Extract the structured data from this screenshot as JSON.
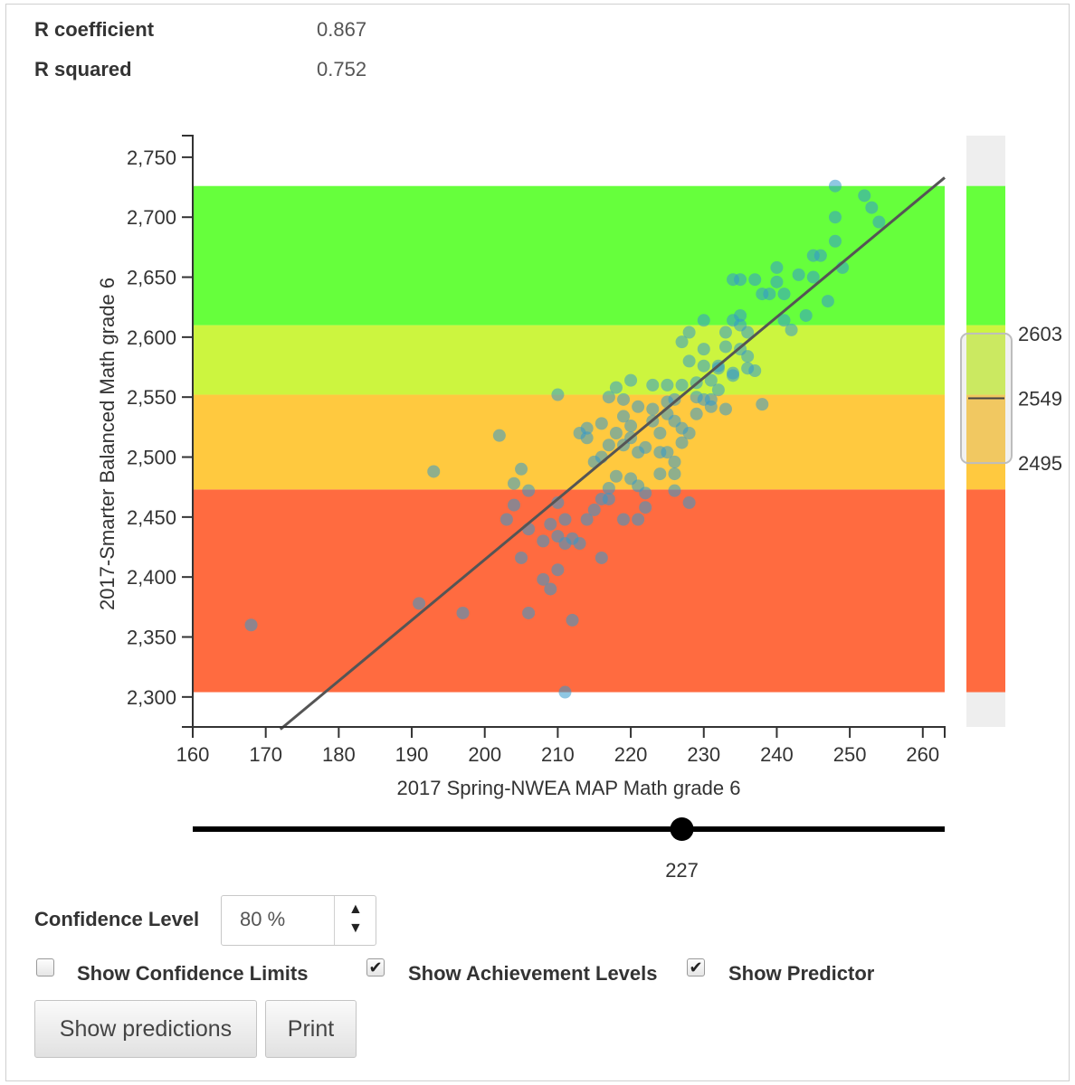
{
  "stats": {
    "r_label": "R coefficient",
    "r_value": "0.867",
    "r2_label": "R squared",
    "r2_value": "0.752"
  },
  "chart_data": {
    "type": "scatter",
    "xlabel": "2017 Spring-NWEA MAP Math grade 6",
    "ylabel": "2017-Smarter Balanced Math grade 6",
    "xlim": [
      160,
      263
    ],
    "ylim": [
      2275,
      2768
    ],
    "x_ticks": [
      160,
      170,
      180,
      190,
      200,
      210,
      220,
      230,
      240,
      250,
      260
    ],
    "x_tick_labels": [
      "160",
      "170",
      "180",
      "190",
      "200",
      "210",
      "220",
      "230",
      "240",
      "250",
      "260"
    ],
    "y_ticks": [
      2300,
      2350,
      2400,
      2450,
      2500,
      2550,
      2600,
      2650,
      2700,
      2750
    ],
    "y_tick_labels": [
      "2,300",
      "2,350",
      "2,400",
      "2,450",
      "2,500",
      "2,550",
      "2,600",
      "2,650",
      "2,700",
      "2,750"
    ],
    "grid": false,
    "achievement_levels": [
      {
        "from": 2304,
        "to": 2473,
        "color": "#ff6b40"
      },
      {
        "from": 2473,
        "to": 2552,
        "color": "#ffc93f"
      },
      {
        "from": 2552,
        "to": 2610,
        "color": "#ccf53f"
      },
      {
        "from": 2610,
        "to": 2726,
        "color": "#66ff3c"
      }
    ],
    "regression_line": {
      "x1": 172,
      "y1": 2273,
      "x2": 263,
      "y2": 2733,
      "color": "#555555"
    },
    "points_color": "#3399cc",
    "points": [
      [
        168,
        2360
      ],
      [
        191,
        2378
      ],
      [
        193,
        2488
      ],
      [
        197,
        2370
      ],
      [
        202,
        2518
      ],
      [
        203,
        2448
      ],
      [
        204,
        2478
      ],
      [
        204,
        2460
      ],
      [
        205,
        2490
      ],
      [
        205,
        2416
      ],
      [
        206,
        2472
      ],
      [
        206,
        2440
      ],
      [
        206,
        2370
      ],
      [
        208,
        2430
      ],
      [
        208,
        2398
      ],
      [
        209,
        2390
      ],
      [
        209,
        2444
      ],
      [
        210,
        2462
      ],
      [
        210,
        2434
      ],
      [
        210,
        2406
      ],
      [
        210,
        2552
      ],
      [
        211,
        2448
      ],
      [
        211,
        2428
      ],
      [
        211,
        2304
      ],
      [
        212,
        2364
      ],
      [
        212,
        2432
      ],
      [
        213,
        2428
      ],
      [
        213,
        2520
      ],
      [
        214,
        2448
      ],
      [
        214,
        2524
      ],
      [
        214,
        2516
      ],
      [
        215,
        2496
      ],
      [
        215,
        2456
      ],
      [
        216,
        2500
      ],
      [
        216,
        2416
      ],
      [
        216,
        2465
      ],
      [
        216,
        2528
      ],
      [
        217,
        2550
      ],
      [
        217,
        2474
      ],
      [
        217,
        2510
      ],
      [
        217,
        2465
      ],
      [
        218,
        2484
      ],
      [
        218,
        2520
      ],
      [
        218,
        2558
      ],
      [
        219,
        2510
      ],
      [
        219,
        2534
      ],
      [
        219,
        2548
      ],
      [
        219,
        2448
      ],
      [
        220,
        2564
      ],
      [
        220,
        2526
      ],
      [
        220,
        2482
      ],
      [
        220,
        2516
      ],
      [
        221,
        2542
      ],
      [
        221,
        2504
      ],
      [
        221,
        2476
      ],
      [
        221,
        2448
      ],
      [
        222,
        2470
      ],
      [
        222,
        2508
      ],
      [
        222,
        2458
      ],
      [
        223,
        2560
      ],
      [
        223,
        2530
      ],
      [
        223,
        2540
      ],
      [
        224,
        2486
      ],
      [
        224,
        2520
      ],
      [
        224,
        2504
      ],
      [
        225,
        2560
      ],
      [
        225,
        2536
      ],
      [
        225,
        2546
      ],
      [
        225,
        2504
      ],
      [
        226,
        2530
      ],
      [
        226,
        2496
      ],
      [
        226,
        2486
      ],
      [
        226,
        2548
      ],
      [
        226,
        2472
      ],
      [
        227,
        2512
      ],
      [
        227,
        2524
      ],
      [
        227,
        2560
      ],
      [
        227,
        2596
      ],
      [
        228,
        2462
      ],
      [
        228,
        2604
      ],
      [
        228,
        2520
      ],
      [
        228,
        2580
      ],
      [
        229,
        2550
      ],
      [
        229,
        2562
      ],
      [
        229,
        2536
      ],
      [
        230,
        2548
      ],
      [
        230,
        2590
      ],
      [
        230,
        2576
      ],
      [
        230,
        2614
      ],
      [
        231,
        2564
      ],
      [
        231,
        2548
      ],
      [
        231,
        2542
      ],
      [
        232,
        2576
      ],
      [
        232,
        2574
      ],
      [
        232,
        2556
      ],
      [
        233,
        2540
      ],
      [
        233,
        2592
      ],
      [
        233,
        2604
      ],
      [
        234,
        2570
      ],
      [
        234,
        2568
      ],
      [
        234,
        2648
      ],
      [
        234,
        2614
      ],
      [
        235,
        2590
      ],
      [
        235,
        2618
      ],
      [
        235,
        2648
      ],
      [
        235,
        2610
      ],
      [
        236,
        2604
      ],
      [
        236,
        2584
      ],
      [
        236,
        2574
      ],
      [
        237,
        2572
      ],
      [
        237,
        2648
      ],
      [
        238,
        2636
      ],
      [
        238,
        2544
      ],
      [
        239,
        2636
      ],
      [
        240,
        2658
      ],
      [
        240,
        2646
      ],
      [
        241,
        2636
      ],
      [
        241,
        2614
      ],
      [
        242,
        2606
      ],
      [
        243,
        2652
      ],
      [
        244,
        2618
      ],
      [
        245,
        2668
      ],
      [
        245,
        2650
      ],
      [
        246,
        2668
      ],
      [
        247,
        2630
      ],
      [
        248,
        2680
      ],
      [
        248,
        2700
      ],
      [
        248,
        2726
      ],
      [
        249,
        2658
      ],
      [
        252,
        2718
      ],
      [
        253,
        2708
      ],
      [
        254,
        2696
      ]
    ]
  },
  "side_scale": {
    "upper_value": "2603",
    "mid_value": "2549",
    "lower_value": "2495"
  },
  "slider": {
    "min": 160,
    "max": 263,
    "value": 227,
    "value_label": "227"
  },
  "controls": {
    "confidence_label": "Confidence Level",
    "confidence_value": "80 %",
    "spin_up": "▲",
    "spin_down": "▼",
    "show_confidence_limits": {
      "label": "Show Confidence Limits",
      "checked": false,
      "mark": ""
    },
    "show_achievement_levels": {
      "label": "Show Achievement Levels",
      "checked": true,
      "mark": "✔"
    },
    "show_predictor": {
      "label": "Show Predictor",
      "checked": true,
      "mark": "✔"
    },
    "show_predictions_button": "Show predictions",
    "print_button": "Print"
  }
}
